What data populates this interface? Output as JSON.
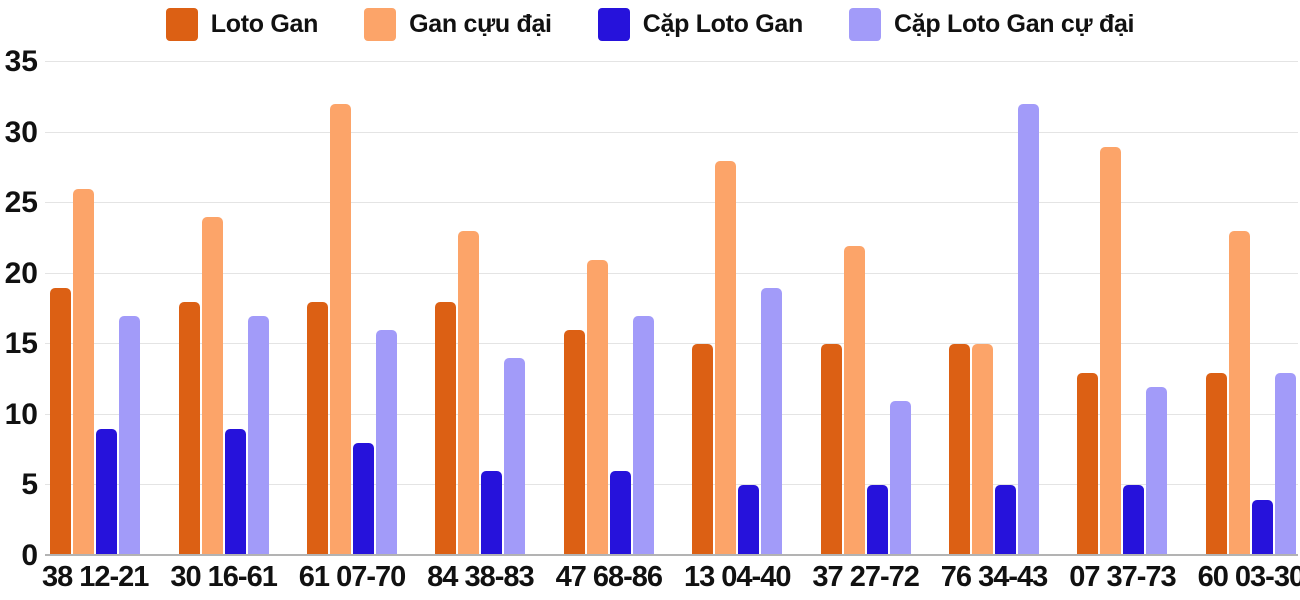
{
  "chart_data": {
    "type": "bar",
    "title": "",
    "xlabel": "",
    "ylabel": "",
    "categories": [
      "38 12-21",
      "30 16-61",
      "61 07-70",
      "84 38-83",
      "47 68-86",
      "13 04-40",
      "37 27-72",
      "76 34-43",
      "07 37-73",
      "60 03-30"
    ],
    "series": [
      {
        "name": "Loto Gan",
        "color": "#DC6014",
        "values": [
          19,
          18,
          18,
          18,
          16,
          15,
          15,
          15,
          13,
          13
        ]
      },
      {
        "name": "Gan cựu đại",
        "color": "#FCA469",
        "values": [
          26,
          24,
          32,
          23,
          21,
          28,
          22,
          15,
          29,
          23
        ]
      },
      {
        "name": "Cặp Loto Gan",
        "color": "#2612DB",
        "values": [
          9,
          9,
          8,
          6,
          6,
          5,
          5,
          5,
          5,
          4
        ]
      },
      {
        "name": "Cặp Loto Gan cự đại",
        "color": "#A29BF9",
        "values": [
          17,
          17,
          16,
          14,
          17,
          19,
          11,
          32,
          12,
          13
        ]
      }
    ],
    "ylim": [
      0,
      35
    ],
    "y_ticks": [
      0,
      5,
      10,
      15,
      20,
      25,
      30,
      35
    ],
    "grid": "horizontal",
    "legend_position": "top"
  },
  "colors": {
    "background": "#FFFFFF",
    "gridline": "#E4E4E4",
    "axis_baseline": "#B3B3B3",
    "text": "#111111"
  }
}
